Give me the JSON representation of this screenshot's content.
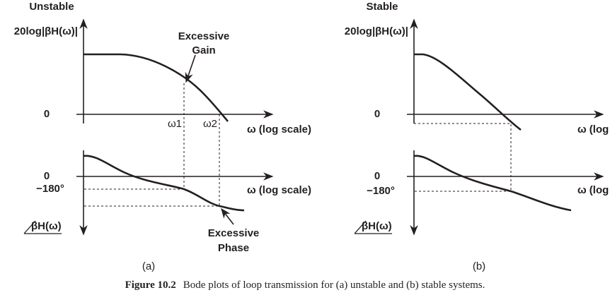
{
  "panels": [
    {
      "title": "Unstable",
      "magnitude_label": "20log|βH(ω)|",
      "magnitude_zero": "0",
      "frequency_marks": [
        "ω1",
        "ω2"
      ],
      "magnitude_x_label": "ω (log scale)",
      "phase_zero": "0",
      "phase_x_label": "ω (log scale)",
      "phase_reference": "−180°",
      "phase_label": "βH(ω)",
      "annotations": [
        [
          "Excessive",
          "Gain"
        ],
        [
          "Excessive",
          "Phase"
        ]
      ],
      "caption": "(a)"
    },
    {
      "title": "Stable",
      "magnitude_label": "20log|βH(ω)|",
      "magnitude_zero": "0",
      "magnitude_x_label": "ω (log scale)",
      "phase_zero": "0",
      "phase_x_label": "ω (log scale)",
      "phase_reference": "−180°",
      "phase_label": "βH(ω)",
      "caption": "(b)"
    }
  ],
  "figure": {
    "number": "Figure 10.2",
    "caption": "Bode plots of loop transmission for (a) unstable and (b) stable systems."
  }
}
